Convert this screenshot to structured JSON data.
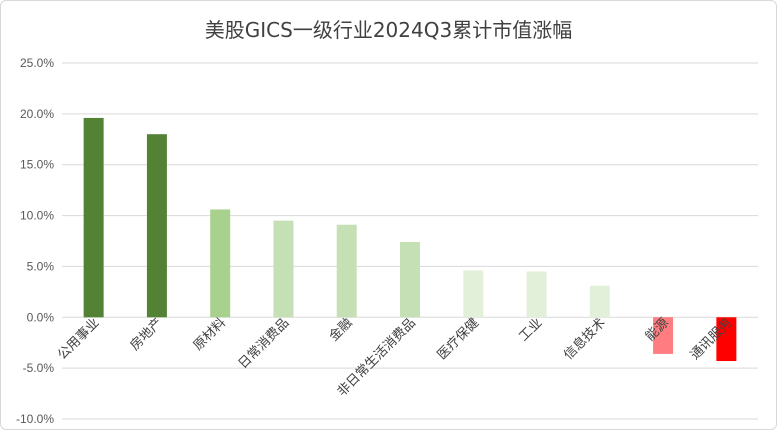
{
  "chart_data": {
    "type": "bar",
    "title": "美股GICS一级行业2024Q3累计市值涨幅",
    "categories": [
      "公用事业",
      "房地产",
      "原材料",
      "日常消费品",
      "金融",
      "非日常生活消费品",
      "医疗保健",
      "工业",
      "信息技术",
      "能源",
      "通讯服务"
    ],
    "values": [
      19.6,
      18.0,
      10.6,
      9.5,
      9.1,
      7.4,
      4.6,
      4.5,
      3.1,
      -3.6,
      -4.3
    ],
    "colors": [
      "#548235",
      "#548235",
      "#a9d18e",
      "#c5e0b4",
      "#c5e0b4",
      "#c5e0b4",
      "#e2f0d9",
      "#e2f0d9",
      "#e2f0d9",
      "#ff7c80",
      "#ff0000"
    ],
    "ylim": [
      -10,
      25
    ],
    "yticks": [
      "25.0%",
      "20.0%",
      "15.0%",
      "10.0%",
      "5.0%",
      "0.0%",
      "-5.0%",
      "-10.0%"
    ],
    "xlabel": "",
    "ylabel": "",
    "grid": true,
    "gridColor": "#d9d9d9"
  }
}
